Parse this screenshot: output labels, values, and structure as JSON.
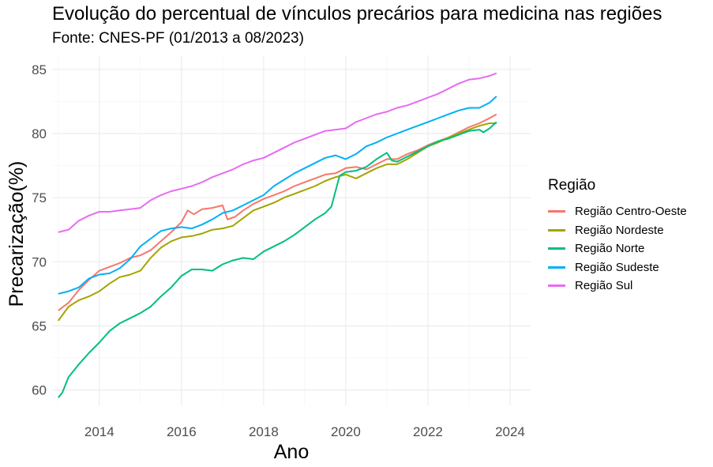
{
  "chart_data": {
    "type": "line",
    "title": "Evolução do percentual de vínculos precários para medicina nas regiões",
    "subtitle": "Fonte: CNES-PF (01/2013 a 08/2023)",
    "xlabel": "Ano",
    "ylabel": "Precarização(%)",
    "xlim": [
      2012.85,
      2024.5
    ],
    "ylim": [
      58.8,
      86.1
    ],
    "x_ticks": [
      2014,
      2016,
      2018,
      2020,
      2022,
      2024
    ],
    "y_ticks": [
      60,
      65,
      70,
      75,
      80,
      85
    ],
    "grid": true,
    "legend": {
      "title": "Região",
      "position": "right"
    },
    "series": [
      {
        "name": "Região Centro-Oeste",
        "color": "#F8766D",
        "points": [
          [
            2013.0,
            66.2
          ],
          [
            2013.25,
            66.8
          ],
          [
            2013.5,
            67.8
          ],
          [
            2013.75,
            68.6
          ],
          [
            2014.0,
            69.3
          ],
          [
            2014.25,
            69.6
          ],
          [
            2014.5,
            69.9
          ],
          [
            2014.75,
            70.3
          ],
          [
            2015.0,
            70.5
          ],
          [
            2015.25,
            70.9
          ],
          [
            2015.5,
            71.6
          ],
          [
            2015.75,
            72.3
          ],
          [
            2016.0,
            73.1
          ],
          [
            2016.15,
            74.0
          ],
          [
            2016.3,
            73.7
          ],
          [
            2016.5,
            74.1
          ],
          [
            2016.75,
            74.2
          ],
          [
            2017.0,
            74.4
          ],
          [
            2017.12,
            73.3
          ],
          [
            2017.3,
            73.5
          ],
          [
            2017.5,
            74.0
          ],
          [
            2017.75,
            74.5
          ],
          [
            2018.0,
            74.9
          ],
          [
            2018.25,
            75.2
          ],
          [
            2018.5,
            75.5
          ],
          [
            2018.75,
            75.9
          ],
          [
            2019.0,
            76.2
          ],
          [
            2019.25,
            76.5
          ],
          [
            2019.5,
            76.8
          ],
          [
            2019.75,
            76.9
          ],
          [
            2020.0,
            77.3
          ],
          [
            2020.25,
            77.4
          ],
          [
            2020.5,
            77.2
          ],
          [
            2020.75,
            77.6
          ],
          [
            2021.0,
            78.0
          ],
          [
            2021.25,
            78.0
          ],
          [
            2021.5,
            78.4
          ],
          [
            2021.75,
            78.7
          ],
          [
            2022.0,
            79.1
          ],
          [
            2022.25,
            79.4
          ],
          [
            2022.5,
            79.7
          ],
          [
            2022.75,
            80.1
          ],
          [
            2023.0,
            80.5
          ],
          [
            2023.25,
            80.8
          ],
          [
            2023.5,
            81.2
          ],
          [
            2023.67,
            81.5
          ]
        ]
      },
      {
        "name": "Região Nordeste",
        "color": "#A3A500",
        "points": [
          [
            2013.0,
            65.4
          ],
          [
            2013.25,
            66.5
          ],
          [
            2013.5,
            67.0
          ],
          [
            2013.75,
            67.3
          ],
          [
            2014.0,
            67.7
          ],
          [
            2014.25,
            68.3
          ],
          [
            2014.5,
            68.8
          ],
          [
            2014.75,
            69.0
          ],
          [
            2015.0,
            69.3
          ],
          [
            2015.25,
            70.3
          ],
          [
            2015.5,
            71.1
          ],
          [
            2015.75,
            71.6
          ],
          [
            2016.0,
            71.9
          ],
          [
            2016.25,
            72.0
          ],
          [
            2016.5,
            72.2
          ],
          [
            2016.75,
            72.5
          ],
          [
            2017.0,
            72.6
          ],
          [
            2017.25,
            72.8
          ],
          [
            2017.5,
            73.4
          ],
          [
            2017.75,
            74.0
          ],
          [
            2018.0,
            74.3
          ],
          [
            2018.25,
            74.6
          ],
          [
            2018.5,
            75.0
          ],
          [
            2018.75,
            75.3
          ],
          [
            2019.0,
            75.6
          ],
          [
            2019.25,
            75.9
          ],
          [
            2019.5,
            76.3
          ],
          [
            2019.75,
            76.6
          ],
          [
            2020.0,
            76.8
          ],
          [
            2020.25,
            76.5
          ],
          [
            2020.5,
            76.9
          ],
          [
            2020.75,
            77.3
          ],
          [
            2021.0,
            77.6
          ],
          [
            2021.25,
            77.6
          ],
          [
            2021.5,
            78.0
          ],
          [
            2021.75,
            78.5
          ],
          [
            2022.0,
            79.0
          ],
          [
            2022.25,
            79.3
          ],
          [
            2022.5,
            79.7
          ],
          [
            2022.75,
            80.0
          ],
          [
            2023.0,
            80.3
          ],
          [
            2023.25,
            80.6
          ],
          [
            2023.5,
            80.8
          ],
          [
            2023.67,
            80.8
          ]
        ]
      },
      {
        "name": "Região Norte",
        "color": "#00BF7D",
        "points": [
          [
            2013.0,
            59.4
          ],
          [
            2013.1,
            59.8
          ],
          [
            2013.25,
            61.0
          ],
          [
            2013.5,
            62.0
          ],
          [
            2013.75,
            62.9
          ],
          [
            2014.0,
            63.7
          ],
          [
            2014.25,
            64.6
          ],
          [
            2014.5,
            65.2
          ],
          [
            2014.75,
            65.6
          ],
          [
            2015.0,
            66.0
          ],
          [
            2015.25,
            66.5
          ],
          [
            2015.5,
            67.3
          ],
          [
            2015.75,
            68.0
          ],
          [
            2016.0,
            68.9
          ],
          [
            2016.25,
            69.4
          ],
          [
            2016.5,
            69.4
          ],
          [
            2016.75,
            69.3
          ],
          [
            2017.0,
            69.8
          ],
          [
            2017.25,
            70.1
          ],
          [
            2017.5,
            70.3
          ],
          [
            2017.75,
            70.2
          ],
          [
            2018.0,
            70.8
          ],
          [
            2018.25,
            71.2
          ],
          [
            2018.5,
            71.6
          ],
          [
            2018.75,
            72.1
          ],
          [
            2019.0,
            72.7
          ],
          [
            2019.25,
            73.3
          ],
          [
            2019.5,
            73.8
          ],
          [
            2019.65,
            74.3
          ],
          [
            2019.75,
            75.5
          ],
          [
            2019.85,
            76.7
          ],
          [
            2020.0,
            77.0
          ],
          [
            2020.25,
            77.1
          ],
          [
            2020.5,
            77.4
          ],
          [
            2020.75,
            78.0
          ],
          [
            2021.0,
            78.5
          ],
          [
            2021.12,
            77.9
          ],
          [
            2021.25,
            77.8
          ],
          [
            2021.5,
            78.2
          ],
          [
            2021.75,
            78.6
          ],
          [
            2022.0,
            79.0
          ],
          [
            2022.25,
            79.4
          ],
          [
            2022.5,
            79.6
          ],
          [
            2022.75,
            79.9
          ],
          [
            2023.0,
            80.2
          ],
          [
            2023.25,
            80.3
          ],
          [
            2023.35,
            80.1
          ],
          [
            2023.5,
            80.4
          ],
          [
            2023.67,
            80.9
          ]
        ]
      },
      {
        "name": "Região Sudeste",
        "color": "#00B0F6",
        "points": [
          [
            2013.0,
            67.5
          ],
          [
            2013.25,
            67.7
          ],
          [
            2013.5,
            68.0
          ],
          [
            2013.75,
            68.7
          ],
          [
            2014.0,
            69.0
          ],
          [
            2014.25,
            69.1
          ],
          [
            2014.5,
            69.5
          ],
          [
            2014.75,
            70.2
          ],
          [
            2015.0,
            71.2
          ],
          [
            2015.25,
            71.8
          ],
          [
            2015.5,
            72.4
          ],
          [
            2015.75,
            72.6
          ],
          [
            2016.0,
            72.7
          ],
          [
            2016.25,
            72.6
          ],
          [
            2016.5,
            72.9
          ],
          [
            2016.75,
            73.3
          ],
          [
            2017.0,
            73.8
          ],
          [
            2017.25,
            74.0
          ],
          [
            2017.5,
            74.4
          ],
          [
            2017.75,
            74.8
          ],
          [
            2018.0,
            75.2
          ],
          [
            2018.25,
            75.9
          ],
          [
            2018.5,
            76.4
          ],
          [
            2018.75,
            76.9
          ],
          [
            2019.0,
            77.3
          ],
          [
            2019.25,
            77.7
          ],
          [
            2019.5,
            78.1
          ],
          [
            2019.75,
            78.3
          ],
          [
            2020.0,
            78.0
          ],
          [
            2020.25,
            78.4
          ],
          [
            2020.5,
            79.0
          ],
          [
            2020.75,
            79.3
          ],
          [
            2021.0,
            79.7
          ],
          [
            2021.25,
            80.0
          ],
          [
            2021.5,
            80.3
          ],
          [
            2021.75,
            80.6
          ],
          [
            2022.0,
            80.9
          ],
          [
            2022.25,
            81.2
          ],
          [
            2022.5,
            81.5
          ],
          [
            2022.75,
            81.8
          ],
          [
            2023.0,
            82.0
          ],
          [
            2023.25,
            82.0
          ],
          [
            2023.5,
            82.4
          ],
          [
            2023.67,
            82.9
          ]
        ]
      },
      {
        "name": "Região Sul",
        "color": "#E76BF3",
        "points": [
          [
            2013.0,
            72.3
          ],
          [
            2013.25,
            72.5
          ],
          [
            2013.5,
            73.2
          ],
          [
            2013.75,
            73.6
          ],
          [
            2014.0,
            73.9
          ],
          [
            2014.25,
            73.9
          ],
          [
            2014.5,
            74.0
          ],
          [
            2014.75,
            74.1
          ],
          [
            2015.0,
            74.2
          ],
          [
            2015.25,
            74.8
          ],
          [
            2015.5,
            75.2
          ],
          [
            2015.75,
            75.5
          ],
          [
            2016.0,
            75.7
          ],
          [
            2016.25,
            75.9
          ],
          [
            2016.5,
            76.2
          ],
          [
            2016.75,
            76.6
          ],
          [
            2017.0,
            76.9
          ],
          [
            2017.25,
            77.2
          ],
          [
            2017.5,
            77.6
          ],
          [
            2017.75,
            77.9
          ],
          [
            2018.0,
            78.1
          ],
          [
            2018.25,
            78.5
          ],
          [
            2018.5,
            78.9
          ],
          [
            2018.75,
            79.3
          ],
          [
            2019.0,
            79.6
          ],
          [
            2019.25,
            79.9
          ],
          [
            2019.5,
            80.2
          ],
          [
            2019.75,
            80.3
          ],
          [
            2020.0,
            80.4
          ],
          [
            2020.25,
            80.9
          ],
          [
            2020.5,
            81.2
          ],
          [
            2020.75,
            81.5
          ],
          [
            2021.0,
            81.7
          ],
          [
            2021.25,
            82.0
          ],
          [
            2021.5,
            82.2
          ],
          [
            2021.75,
            82.5
          ],
          [
            2022.0,
            82.8
          ],
          [
            2022.25,
            83.1
          ],
          [
            2022.5,
            83.5
          ],
          [
            2022.75,
            83.9
          ],
          [
            2023.0,
            84.2
          ],
          [
            2023.25,
            84.3
          ],
          [
            2023.5,
            84.5
          ],
          [
            2023.67,
            84.7
          ]
        ]
      }
    ]
  }
}
